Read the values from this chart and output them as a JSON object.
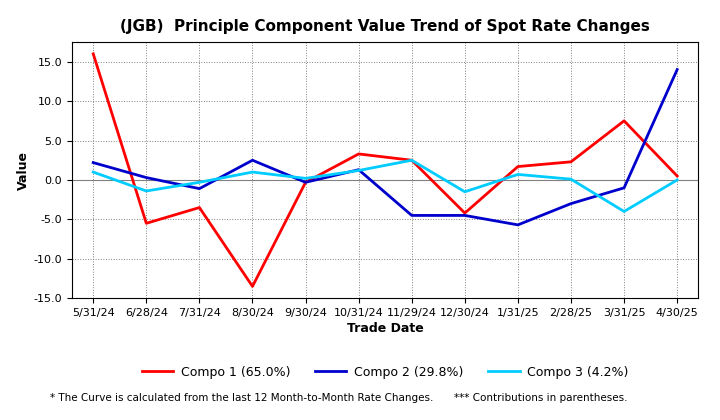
{
  "title": "(JGB)  Principle Component Value Trend of Spot Rate Changes",
  "xlabel": "Trade Date",
  "ylabel": "Value",
  "x_labels": [
    "5/31/24",
    "6/28/24",
    "7/31/24",
    "8/30/24",
    "9/30/24",
    "10/31/24",
    "11/29/24",
    "12/30/24",
    "1/31/25",
    "2/28/25",
    "3/31/25",
    "4/30/25"
  ],
  "compo1": [
    16.0,
    -5.5,
    -3.5,
    -13.5,
    -0.3,
    3.3,
    2.5,
    -4.2,
    1.7,
    2.3,
    7.5,
    0.5
  ],
  "compo2": [
    2.2,
    0.3,
    -1.1,
    2.5,
    -0.3,
    1.3,
    -4.5,
    -4.5,
    -5.7,
    -3.0,
    -1.0,
    14.0
  ],
  "compo3": [
    1.0,
    -1.4,
    -0.3,
    1.0,
    0.2,
    1.2,
    2.5,
    -1.5,
    0.7,
    0.1,
    -4.0,
    0.0
  ],
  "color1": "#FF0000",
  "color2": "#0000CC",
  "color3": "#00CCFF",
  "ylim": [
    -15.0,
    17.5
  ],
  "yticks": [
    -15.0,
    -10.0,
    -5.0,
    0.0,
    5.0,
    10.0,
    15.0
  ],
  "legend_label1": "Compo 1 (65.0%)",
  "legend_label2": "Compo 2 (29.8%)",
  "legend_label3": "Compo 3 (4.2%)",
  "footnote_left": "* The Curve is calculated from the last 12 Month-to-Month Rate Changes.",
  "footnote_right": "*** Contributions in parentheses.",
  "linewidth": 2.0,
  "title_fontsize": 11,
  "axis_label_fontsize": 9,
  "tick_fontsize": 8,
  "legend_fontsize": 9,
  "footnote_fontsize": 7.5
}
